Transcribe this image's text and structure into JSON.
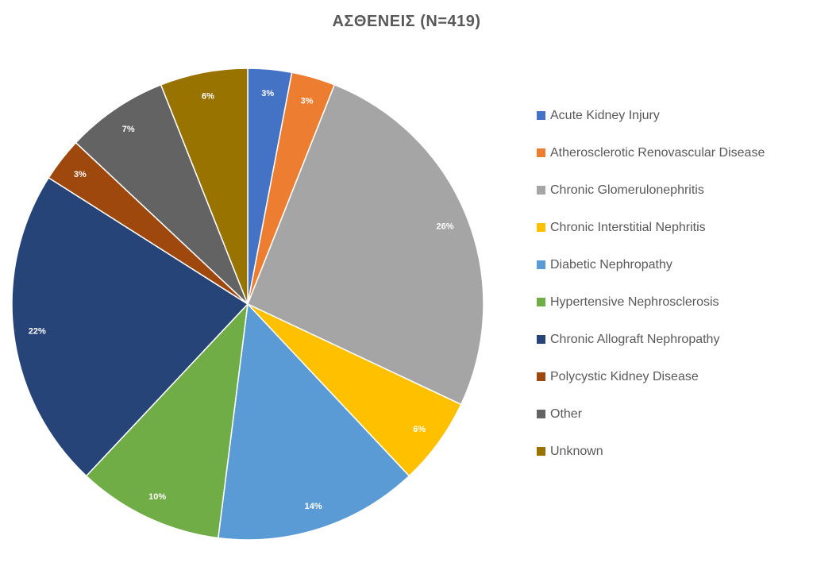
{
  "chart_data": {
    "type": "pie",
    "title": "ΑΣΘΕΝΕΙΣ (N=419)",
    "legend_position": "right",
    "start_angle_deg": 0,
    "direction": "clockwise",
    "slices": [
      {
        "name": "Acute Kidney Injury",
        "value": 3,
        "label": "3%",
        "color": "#4472C4"
      },
      {
        "name": "Atherosclerotic Renovascular Disease",
        "value": 3,
        "label": "3%",
        "color": "#ED7D31"
      },
      {
        "name": "Chronic Glomerulonephritis",
        "value": 26,
        "label": "26%",
        "color": "#A5A5A5"
      },
      {
        "name": "Chronic Interstitial Nephritis",
        "value": 6,
        "label": "6%",
        "color": "#FFC000"
      },
      {
        "name": "Diabetic Nephropathy",
        "value": 14,
        "label": "14%",
        "color": "#5B9BD5"
      },
      {
        "name": "Hypertensive Nephrosclerosis",
        "value": 10,
        "label": "10%",
        "color": "#70AD47"
      },
      {
        "name": "Chronic Allograft Nephropathy",
        "value": 22,
        "label": "22%",
        "color": "#264478"
      },
      {
        "name": "Polycystic Kidney Disease",
        "value": 3,
        "label": "3%",
        "color": "#9E480E"
      },
      {
        "name": "Other",
        "value": 7,
        "label": "7%",
        "color": "#636363"
      },
      {
        "name": "Unknown",
        "value": 6,
        "label": "6%",
        "color": "#997300"
      }
    ]
  }
}
